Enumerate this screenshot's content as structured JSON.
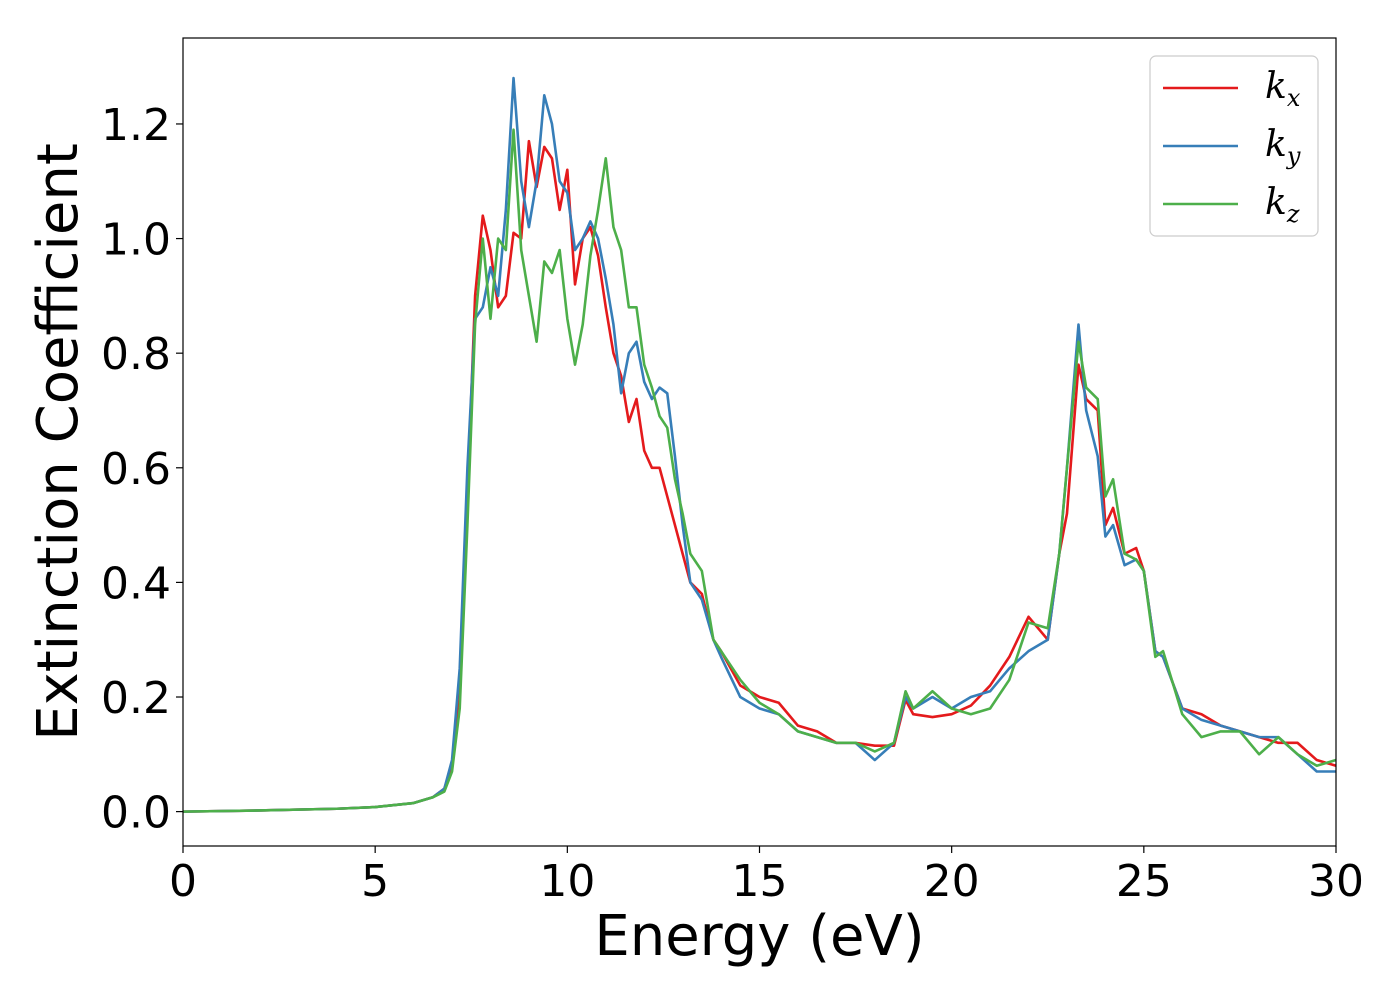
{
  "chart_data": {
    "type": "line",
    "xlabel": "Energy (eV)",
    "ylabel": "Extinction Coefficient",
    "xlim": [
      0,
      30
    ],
    "ylim": [
      -0.06,
      1.35
    ],
    "xticks": [
      0,
      5,
      10,
      15,
      20,
      25,
      30
    ],
    "xtick_labels": [
      "0",
      "5",
      "10",
      "15",
      "20",
      "25",
      "30"
    ],
    "yticks": [
      0.0,
      0.2,
      0.4,
      0.6,
      0.8,
      1.0,
      1.2
    ],
    "ytick_labels": [
      "0.0",
      "0.2",
      "0.4",
      "0.6",
      "0.8",
      "1.0",
      "1.2"
    ],
    "grid": false,
    "legend_position": "top-right",
    "series": [
      {
        "name": "k_x",
        "legend_base": "k",
        "legend_sub": "x",
        "color": "#e41a1c",
        "x": [
          0,
          2,
          4,
          5,
          6,
          6.5,
          6.8,
          7.0,
          7.2,
          7.4,
          7.6,
          7.8,
          8.0,
          8.2,
          8.4,
          8.6,
          8.8,
          9.0,
          9.2,
          9.4,
          9.6,
          9.8,
          10.0,
          10.2,
          10.4,
          10.6,
          10.8,
          11.0,
          11.2,
          11.4,
          11.6,
          11.8,
          12.0,
          12.2,
          12.4,
          12.6,
          12.8,
          13.0,
          13.2,
          13.5,
          13.8,
          14.0,
          14.5,
          15.0,
          15.5,
          16.0,
          16.5,
          17.0,
          17.5,
          18.0,
          18.5,
          18.8,
          19.0,
          19.5,
          20.0,
          20.5,
          21.0,
          21.5,
          22.0,
          22.5,
          22.8,
          23.0,
          23.3,
          23.5,
          23.8,
          24.0,
          24.2,
          24.5,
          24.8,
          25.0,
          25.3,
          25.5,
          26.0,
          26.5,
          27.0,
          27.5,
          28.0,
          28.5,
          29.0,
          29.5,
          30.0
        ],
        "y": [
          0.0,
          0.002,
          0.005,
          0.008,
          0.015,
          0.025,
          0.04,
          0.08,
          0.2,
          0.55,
          0.9,
          1.04,
          0.98,
          0.88,
          0.9,
          1.01,
          1.0,
          1.17,
          1.09,
          1.16,
          1.14,
          1.05,
          1.12,
          0.92,
          1.0,
          1.02,
          0.97,
          0.88,
          0.8,
          0.76,
          0.68,
          0.72,
          0.63,
          0.6,
          0.6,
          0.55,
          0.5,
          0.45,
          0.4,
          0.38,
          0.3,
          0.28,
          0.22,
          0.2,
          0.19,
          0.15,
          0.14,
          0.12,
          0.12,
          0.115,
          0.115,
          0.195,
          0.17,
          0.165,
          0.17,
          0.185,
          0.22,
          0.27,
          0.34,
          0.3,
          0.45,
          0.52,
          0.78,
          0.72,
          0.7,
          0.5,
          0.53,
          0.45,
          0.46,
          0.42,
          0.28,
          0.27,
          0.18,
          0.17,
          0.15,
          0.14,
          0.13,
          0.12,
          0.12,
          0.09,
          0.08
        ]
      },
      {
        "name": "k_y",
        "legend_base": "k",
        "legend_sub": "y",
        "color": "#377eb8",
        "x": [
          0,
          2,
          4,
          5,
          6,
          6.5,
          6.8,
          7.0,
          7.2,
          7.4,
          7.6,
          7.8,
          8.0,
          8.2,
          8.4,
          8.6,
          8.8,
          9.0,
          9.2,
          9.4,
          9.6,
          9.8,
          10.0,
          10.2,
          10.4,
          10.6,
          10.8,
          11.0,
          11.2,
          11.4,
          11.6,
          11.8,
          12.0,
          12.2,
          12.4,
          12.6,
          12.8,
          13.0,
          13.2,
          13.5,
          13.8,
          14.0,
          14.5,
          15.0,
          15.5,
          16.0,
          16.5,
          17.0,
          17.5,
          18.0,
          18.5,
          18.8,
          19.0,
          19.5,
          20.0,
          20.5,
          21.0,
          21.5,
          22.0,
          22.5,
          22.8,
          23.0,
          23.3,
          23.5,
          23.8,
          24.0,
          24.2,
          24.5,
          24.8,
          25.0,
          25.3,
          25.5,
          26.0,
          26.5,
          27.0,
          27.5,
          28.0,
          28.5,
          29.0,
          29.5,
          30.0
        ],
        "y": [
          0.0,
          0.002,
          0.005,
          0.008,
          0.015,
          0.025,
          0.04,
          0.09,
          0.25,
          0.6,
          0.86,
          0.88,
          0.95,
          0.9,
          1.05,
          1.28,
          1.1,
          1.02,
          1.1,
          1.25,
          1.2,
          1.1,
          1.08,
          0.98,
          1.0,
          1.03,
          1.0,
          0.93,
          0.85,
          0.73,
          0.8,
          0.82,
          0.75,
          0.72,
          0.74,
          0.73,
          0.62,
          0.5,
          0.4,
          0.37,
          0.3,
          0.27,
          0.2,
          0.18,
          0.17,
          0.14,
          0.13,
          0.12,
          0.12,
          0.09,
          0.12,
          0.2,
          0.18,
          0.2,
          0.18,
          0.2,
          0.21,
          0.25,
          0.28,
          0.3,
          0.45,
          0.6,
          0.85,
          0.7,
          0.62,
          0.48,
          0.5,
          0.43,
          0.44,
          0.42,
          0.28,
          0.27,
          0.18,
          0.16,
          0.15,
          0.14,
          0.13,
          0.13,
          0.1,
          0.07,
          0.07
        ]
      },
      {
        "name": "k_z",
        "legend_base": "k",
        "legend_sub": "z",
        "color": "#4daf4a",
        "x": [
          0,
          2,
          4,
          5,
          6,
          6.5,
          6.8,
          7.0,
          7.2,
          7.4,
          7.6,
          7.8,
          8.0,
          8.2,
          8.4,
          8.6,
          8.8,
          9.0,
          9.2,
          9.4,
          9.6,
          9.8,
          10.0,
          10.2,
          10.4,
          10.6,
          10.8,
          11.0,
          11.2,
          11.4,
          11.6,
          11.8,
          12.0,
          12.2,
          12.4,
          12.6,
          12.8,
          13.0,
          13.2,
          13.5,
          13.8,
          14.0,
          14.5,
          15.0,
          15.5,
          16.0,
          16.5,
          17.0,
          17.5,
          18.0,
          18.5,
          18.8,
          19.0,
          19.5,
          20.0,
          20.5,
          21.0,
          21.5,
          22.0,
          22.5,
          22.8,
          23.0,
          23.3,
          23.5,
          23.8,
          24.0,
          24.2,
          24.5,
          24.8,
          25.0,
          25.3,
          25.5,
          26.0,
          26.5,
          27.0,
          27.5,
          28.0,
          28.5,
          29.0,
          29.5,
          30.0
        ],
        "y": [
          0.0,
          0.002,
          0.005,
          0.008,
          0.015,
          0.025,
          0.035,
          0.07,
          0.18,
          0.5,
          0.85,
          1.0,
          0.86,
          1.0,
          0.98,
          1.19,
          0.98,
          0.9,
          0.82,
          0.96,
          0.94,
          0.98,
          0.86,
          0.78,
          0.85,
          0.97,
          1.05,
          1.14,
          1.02,
          0.98,
          0.88,
          0.88,
          0.78,
          0.74,
          0.69,
          0.67,
          0.58,
          0.52,
          0.45,
          0.42,
          0.3,
          0.28,
          0.23,
          0.19,
          0.17,
          0.14,
          0.13,
          0.12,
          0.12,
          0.105,
          0.12,
          0.21,
          0.18,
          0.21,
          0.18,
          0.17,
          0.18,
          0.23,
          0.33,
          0.32,
          0.45,
          0.6,
          0.82,
          0.74,
          0.72,
          0.55,
          0.58,
          0.45,
          0.44,
          0.42,
          0.27,
          0.28,
          0.17,
          0.13,
          0.14,
          0.14,
          0.1,
          0.13,
          0.1,
          0.08,
          0.09
        ]
      }
    ]
  }
}
